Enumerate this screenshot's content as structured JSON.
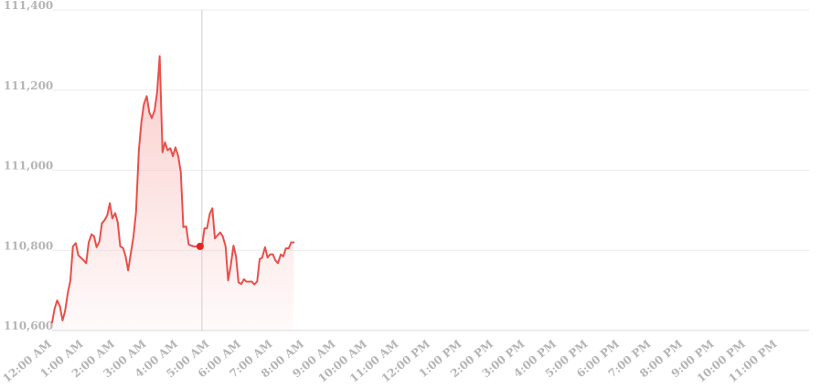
{
  "chart_data": {
    "type": "area",
    "title": "",
    "xlabel": "",
    "ylabel": "",
    "ylim": [
      110600,
      111400
    ],
    "y_ticks": [
      {
        "value": 110600,
        "label": "110,600"
      },
      {
        "value": 110800,
        "label": "110,800"
      },
      {
        "value": 111000,
        "label": "111,000"
      },
      {
        "value": 111200,
        "label": "111,200"
      },
      {
        "value": 111400,
        "label": "111,400"
      }
    ],
    "x_range_hours": [
      0,
      24
    ],
    "x_ticks": [
      {
        "hour": 0,
        "label": "12:00 AM"
      },
      {
        "hour": 1,
        "label": "1:00 AM"
      },
      {
        "hour": 2,
        "label": "2:00 AM"
      },
      {
        "hour": 3,
        "label": "3:00 AM"
      },
      {
        "hour": 4,
        "label": "4:00 AM"
      },
      {
        "hour": 5,
        "label": "5:00 AM"
      },
      {
        "hour": 6,
        "label": "6:00 AM"
      },
      {
        "hour": 7,
        "label": "7:00 AM"
      },
      {
        "hour": 8,
        "label": "8:00 AM"
      },
      {
        "hour": 9,
        "label": "9:00 AM"
      },
      {
        "hour": 10,
        "label": "10:00 AM"
      },
      {
        "hour": 11,
        "label": "11:00 AM"
      },
      {
        "hour": 12,
        "label": "12:00 PM"
      },
      {
        "hour": 13,
        "label": "1:00 PM"
      },
      {
        "hour": 14,
        "label": "2:00 PM"
      },
      {
        "hour": 15,
        "label": "3:00 PM"
      },
      {
        "hour": 16,
        "label": "4:00 PM"
      },
      {
        "hour": 17,
        "label": "5:00 PM"
      },
      {
        "hour": 18,
        "label": "6:00 PM"
      },
      {
        "hour": 19,
        "label": "7:00 PM"
      },
      {
        "hour": 20,
        "label": "8:00 PM"
      },
      {
        "hour": 21,
        "label": "9:00 PM"
      },
      {
        "hour": 22,
        "label": "10:00 PM"
      },
      {
        "hour": 23,
        "label": "11:00 PM"
      }
    ],
    "grid": true,
    "hover": {
      "hour": 4.75,
      "value": 110810
    },
    "colors": {
      "line": "#e8504a",
      "fill": "#f9c9c7",
      "grid": "#ececec",
      "crosshair": "#cfcfcf",
      "marker": "#e8231e"
    },
    "series": [
      {
        "points": [
          [
            0.0,
            110620
          ],
          [
            0.08,
            110655
          ],
          [
            0.16,
            110675
          ],
          [
            0.25,
            110660
          ],
          [
            0.33,
            110625
          ],
          [
            0.41,
            110648
          ],
          [
            0.5,
            110695
          ],
          [
            0.58,
            110725
          ],
          [
            0.66,
            110810
          ],
          [
            0.75,
            110818
          ],
          [
            0.83,
            110788
          ],
          [
            0.91,
            110782
          ],
          [
            1.0,
            110775
          ],
          [
            1.08,
            110768
          ],
          [
            1.16,
            110820
          ],
          [
            1.25,
            110840
          ],
          [
            1.33,
            110835
          ],
          [
            1.41,
            110808
          ],
          [
            1.5,
            110822
          ],
          [
            1.58,
            110868
          ],
          [
            1.66,
            110875
          ],
          [
            1.75,
            110888
          ],
          [
            1.83,
            110918
          ],
          [
            1.91,
            110880
          ],
          [
            2.0,
            110893
          ],
          [
            2.08,
            110870
          ],
          [
            2.16,
            110810
          ],
          [
            2.25,
            110806
          ],
          [
            2.33,
            110785
          ],
          [
            2.41,
            110750
          ],
          [
            2.5,
            110795
          ],
          [
            2.58,
            110835
          ],
          [
            2.66,
            110895
          ],
          [
            2.75,
            111050
          ],
          [
            2.83,
            111120
          ],
          [
            2.91,
            111165
          ],
          [
            3.0,
            111185
          ],
          [
            3.08,
            111145
          ],
          [
            3.16,
            111130
          ],
          [
            3.25,
            111150
          ],
          [
            3.33,
            111195
          ],
          [
            3.41,
            111285
          ],
          [
            3.5,
            111045
          ],
          [
            3.58,
            111070
          ],
          [
            3.66,
            111050
          ],
          [
            3.75,
            111055
          ],
          [
            3.83,
            111035
          ],
          [
            3.91,
            111057
          ],
          [
            4.0,
            111035
          ],
          [
            4.08,
            110995
          ],
          [
            4.16,
            110858
          ],
          [
            4.25,
            110860
          ],
          [
            4.33,
            110815
          ],
          [
            4.41,
            110812
          ],
          [
            4.5,
            110810
          ],
          [
            4.58,
            110810
          ],
          [
            4.66,
            110808
          ],
          [
            4.75,
            110810
          ],
          [
            4.83,
            110855
          ],
          [
            4.91,
            110855
          ],
          [
            5.0,
            110892
          ],
          [
            5.08,
            110905
          ],
          [
            5.16,
            110830
          ],
          [
            5.25,
            110838
          ],
          [
            5.33,
            110845
          ],
          [
            5.41,
            110835
          ],
          [
            5.5,
            110810
          ],
          [
            5.58,
            110725
          ],
          [
            5.66,
            110760
          ],
          [
            5.75,
            110812
          ],
          [
            5.83,
            110785
          ],
          [
            5.91,
            110720
          ],
          [
            6.0,
            110716
          ],
          [
            6.08,
            110728
          ],
          [
            6.16,
            110722
          ],
          [
            6.25,
            110722
          ],
          [
            6.33,
            110722
          ],
          [
            6.41,
            110715
          ],
          [
            6.5,
            110722
          ],
          [
            6.58,
            110778
          ],
          [
            6.66,
            110782
          ],
          [
            6.75,
            110808
          ],
          [
            6.83,
            110782
          ],
          [
            6.91,
            110790
          ],
          [
            7.0,
            110790
          ],
          [
            7.08,
            110775
          ],
          [
            7.16,
            110768
          ],
          [
            7.25,
            110790
          ],
          [
            7.33,
            110785
          ],
          [
            7.41,
            110805
          ],
          [
            7.5,
            110805
          ],
          [
            7.58,
            110820
          ],
          [
            7.66,
            110820
          ]
        ]
      }
    ]
  }
}
